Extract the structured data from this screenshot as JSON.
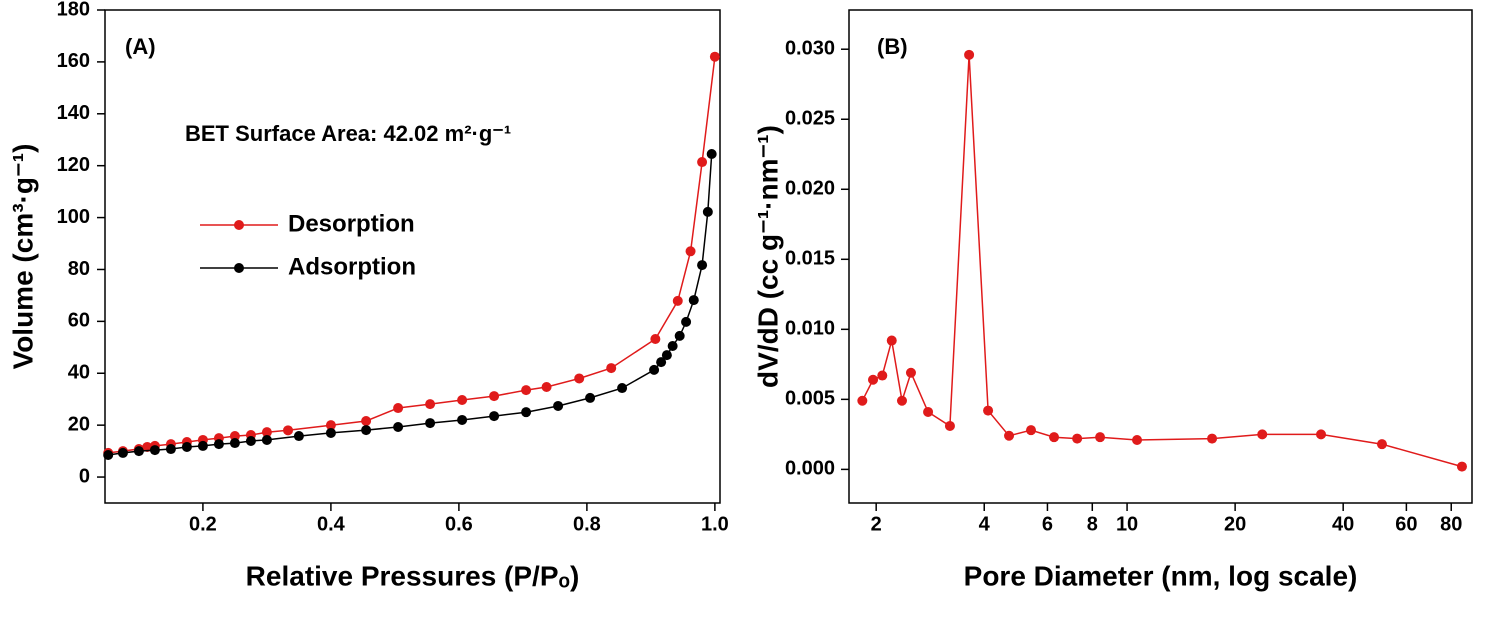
{
  "chart_data": [
    {
      "type": "line",
      "xlabel": "Relative Pressures (P/Pₒ)",
      "ylabel": "Volume (cm³·g⁻¹)",
      "annotations": [
        "(A)",
        "BET Surface Area:  42.02 m²·g⁻¹"
      ],
      "xlim": [
        0.047,
        1.008
      ],
      "ylim": [
        -10,
        180
      ],
      "xticks": [
        0.2,
        0.4,
        0.6,
        0.8,
        {
          "value": 1,
          "label": "1.0"
        }
      ],
      "yticks": [
        0,
        20,
        40,
        60,
        80,
        100,
        120,
        140,
        160,
        180
      ],
      "legend": "left",
      "series": [
        {
          "name": "Desorption",
          "color": "#e01b1b",
          "x": [
            0.052,
            0.075,
            0.1,
            0.113,
            0.125,
            0.15,
            0.175,
            0.2,
            0.225,
            0.25,
            0.275,
            0.3,
            0.333,
            0.4,
            0.455,
            0.505,
            0.555,
            0.605,
            0.655,
            0.705,
            0.737,
            0.788,
            0.838,
            0.907,
            0.942,
            0.962,
            0.98,
            1.0
          ],
          "values": [
            9.3,
            10,
            10.8,
            11.6,
            12,
            12.7,
            13.5,
            14.3,
            15,
            15.8,
            16.2,
            17.3,
            18,
            20,
            21.6,
            26.6,
            28.1,
            29.7,
            31.2,
            33.5,
            34.7,
            38,
            42,
            53.2,
            67.9,
            87,
            121.4,
            162
          ]
        },
        {
          "name": "Adsorption",
          "color": "#000000",
          "x": [
            0.052,
            0.075,
            0.1,
            0.125,
            0.15,
            0.175,
            0.2,
            0.225,
            0.25,
            0.275,
            0.3,
            0.35,
            0.4,
            0.455,
            0.505,
            0.555,
            0.605,
            0.655,
            0.705,
            0.755,
            0.805,
            0.855,
            0.905,
            0.916,
            0.925,
            0.934,
            0.945,
            0.955,
            0.967,
            0.98,
            0.989,
            0.995
          ],
          "values": [
            8.5,
            9.3,
            10,
            10.4,
            10.8,
            11.6,
            12,
            12.7,
            13.1,
            13.9,
            14.3,
            15.8,
            17,
            18.1,
            19.3,
            20.8,
            22,
            23.5,
            25,
            27.4,
            30.5,
            34.3,
            41.3,
            44.3,
            47,
            50.5,
            54.4,
            59.8,
            68.2,
            81.7,
            102.2,
            124.5
          ]
        }
      ]
    },
    {
      "type": "line",
      "xlabel": "Pore Diameter (nm, log scale)",
      "ylabel": "dV/dD (cc g⁻¹·nm⁻¹)",
      "annotations": [
        "(B)"
      ],
      "xscale": "log",
      "xlim": [
        1.68,
        91.4
      ],
      "ylim": [
        -0.0024,
        0.0328
      ],
      "xticks": [
        2,
        4,
        6,
        8,
        10,
        20,
        40,
        60,
        80
      ],
      "yticks": [
        {
          "value": 0,
          "label": "0.000"
        },
        {
          "value": 0.005,
          "label": "0.005"
        },
        {
          "value": 0.01,
          "label": "0.010"
        },
        {
          "value": 0.015,
          "label": "0.015"
        },
        {
          "value": 0.02,
          "label": "0.020"
        },
        {
          "value": 0.025,
          "label": "0.025"
        },
        {
          "value": 0.03,
          "label": "0.030"
        }
      ],
      "series": [
        {
          "color": "#e01b1b",
          "x": [
            1.83,
            1.96,
            2.08,
            2.21,
            2.36,
            2.5,
            2.79,
            3.21,
            3.63,
            4.1,
            4.69,
            5.4,
            6.26,
            7.26,
            8.41,
            10.66,
            17.25,
            23.8,
            34.7,
            51.3,
            85.7
          ],
          "values": [
            0.0049,
            0.0064,
            0.0067,
            0.0092,
            0.0049,
            0.0069,
            0.0041,
            0.0031,
            0.0296,
            0.0042,
            0.0024,
            0.0028,
            0.0023,
            0.0022,
            0.0023,
            0.0021,
            0.0022,
            0.0025,
            0.0025,
            0.0018,
            0.0002
          ]
        }
      ]
    }
  ]
}
